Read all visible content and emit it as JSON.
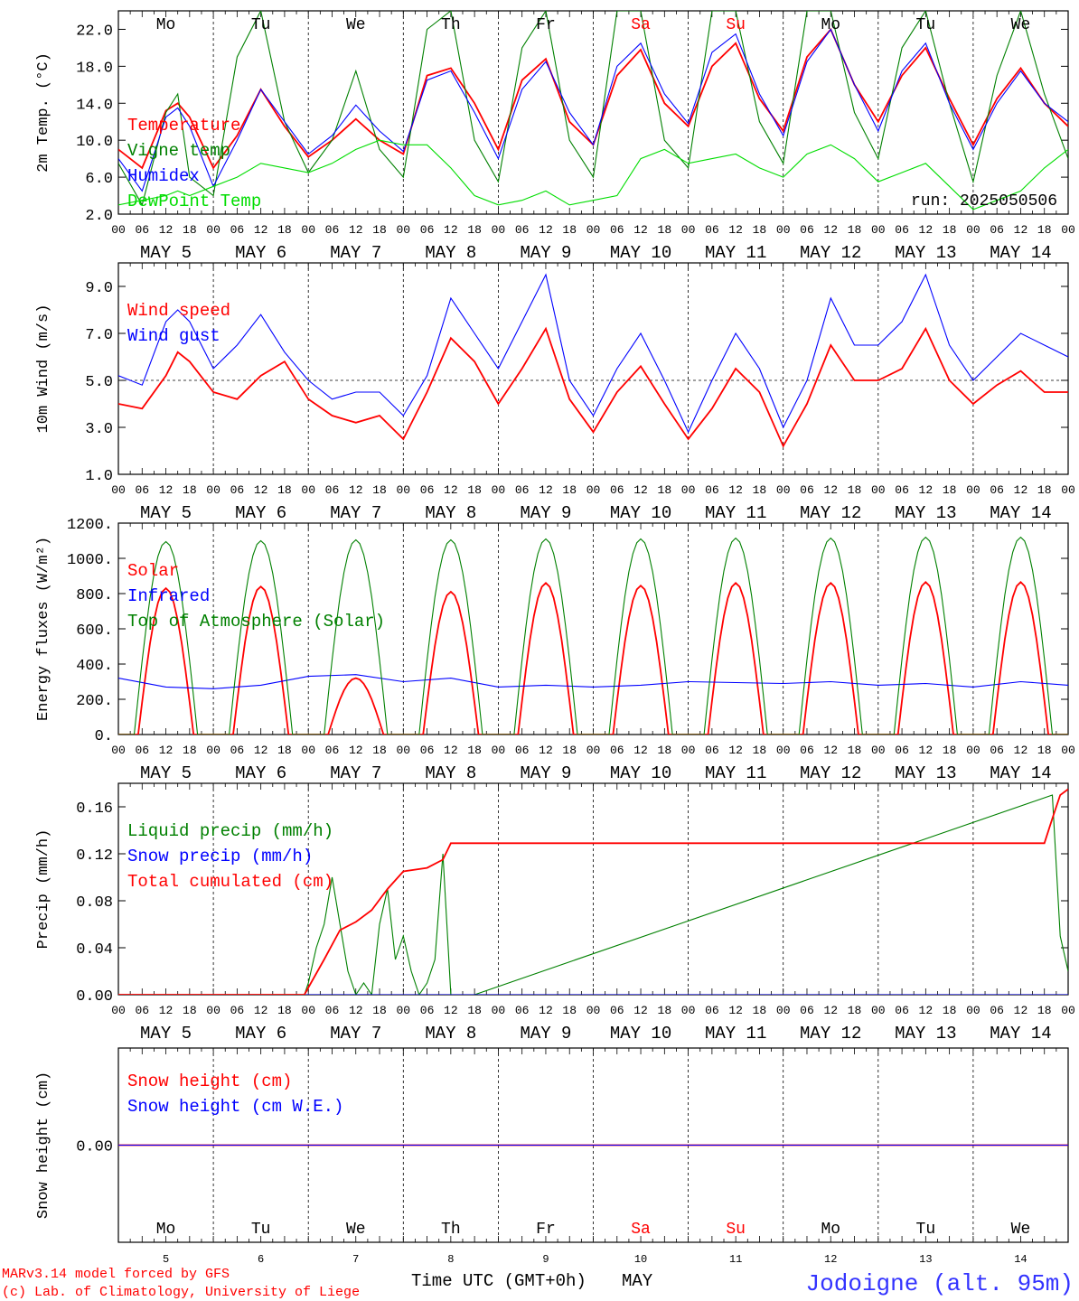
{
  "day_labels": [
    "Mo",
    "Tu",
    "We",
    "Th",
    "Fr",
    "Sa",
    "Su",
    "Mo",
    "Tu",
    "We"
  ],
  "weekend_days": [
    5,
    6
  ],
  "date_labels": [
    "MAY  5",
    "MAY  6",
    "MAY  7",
    "MAY  8",
    "MAY  9",
    "MAY 10",
    "MAY 11",
    "MAY 12",
    "MAY 13",
    "MAY 14"
  ],
  "hour_ticks": [
    "00",
    "06",
    "12",
    "18"
  ],
  "final_hour_tick": "00",
  "bottom_day_numbers": [
    "5",
    "6",
    "7",
    "8",
    "9",
    "10",
    "11",
    "12",
    "13",
    "14"
  ],
  "x_axis_title": "Time UTC (GMT+0h)",
  "x_axis_month": "MAY",
  "footer": {
    "model_line": "MARv3.14 model forced by GFS",
    "credit_line": "(c) Lab. of Climatology, University of Liege",
    "station": "Jodoigne (alt. 95m)"
  },
  "colors": {
    "red": "#ff0000",
    "green": "#008000",
    "blue": "#0000ff",
    "lightgreen": "#00dd00",
    "station": "#3333ff"
  },
  "chart_data": [
    {
      "id": "temp",
      "type": "line",
      "ylabel": "2m Temp. (°C)",
      "ylim": [
        2,
        24
      ],
      "yticks": [
        "2.0",
        "6.0",
        "10.0",
        "14.0",
        "18.0",
        "22.0"
      ],
      "yticks_values": [
        2,
        6,
        10,
        14,
        18,
        22
      ],
      "annotation": "run: 2025050506",
      "series": [
        {
          "name": "Temperature",
          "color": "red",
          "x": [
            0,
            6,
            12,
            15,
            18,
            24,
            30,
            36,
            42,
            48,
            54,
            60,
            66,
            72,
            78,
            84,
            90,
            96,
            102,
            108,
            114,
            120,
            126,
            132,
            138,
            144,
            150,
            156,
            162,
            168,
            174,
            180,
            186,
            192,
            198,
            204,
            210,
            216,
            222,
            228,
            234,
            240
          ],
          "y": [
            9,
            7,
            13.2,
            14,
            12.5,
            7,
            10.5,
            15.5,
            11.5,
            8.2,
            10,
            12.3,
            10,
            8.5,
            17,
            17.8,
            14,
            9,
            16.5,
            18.8,
            12,
            9.5,
            17,
            19.8,
            14,
            11.5,
            18,
            20.5,
            14.5,
            11,
            19,
            22,
            16,
            12,
            17,
            20,
            14.5,
            9.5,
            14.5,
            17.8,
            14,
            11.5
          ]
        },
        {
          "name": "Vigne temp",
          "color": "green",
          "x": [
            0,
            6,
            12,
            15,
            18,
            24,
            30,
            36,
            42,
            48,
            54,
            60,
            66,
            72,
            78,
            84,
            90,
            96,
            102,
            108,
            114,
            120,
            126,
            132,
            138,
            144,
            150,
            156,
            162,
            168,
            174,
            180,
            186,
            192,
            198,
            204,
            210,
            216,
            222,
            228,
            234,
            240
          ],
          "y": [
            7.5,
            3,
            13,
            15,
            6,
            4,
            19,
            24,
            12,
            6.5,
            10,
            17.5,
            9,
            6,
            22,
            24,
            10,
            5.5,
            20,
            24,
            10,
            6,
            24,
            24,
            10,
            7,
            24,
            24,
            12,
            7.5,
            24,
            24,
            13,
            8,
            20,
            24,
            14,
            5.5,
            17,
            24,
            15,
            8
          ]
        },
        {
          "name": "Humidex",
          "color": "blue",
          "x": [
            0,
            6,
            12,
            15,
            18,
            24,
            30,
            36,
            42,
            48,
            54,
            60,
            66,
            72,
            78,
            84,
            90,
            96,
            102,
            108,
            114,
            120,
            126,
            132,
            138,
            144,
            150,
            156,
            162,
            168,
            174,
            180,
            186,
            192,
            198,
            204,
            210,
            216,
            222,
            228,
            234,
            240
          ],
          "y": [
            8,
            4.5,
            12.5,
            13.5,
            11.5,
            5,
            10,
            15.5,
            12,
            8.5,
            10.5,
            13.8,
            11,
            8.8,
            16.5,
            17.5,
            13,
            8,
            15.5,
            18.5,
            13,
            9.5,
            18,
            20.5,
            15,
            11.8,
            19.5,
            21.5,
            15,
            10.5,
            18.5,
            22,
            16,
            11,
            17.5,
            20.5,
            14,
            9,
            14,
            17.5,
            14,
            12
          ]
        },
        {
          "name": "DewPoint Temp",
          "color": "lightgreen",
          "x": [
            0,
            6,
            12,
            15,
            18,
            24,
            30,
            36,
            42,
            48,
            54,
            60,
            66,
            72,
            78,
            84,
            90,
            96,
            102,
            108,
            114,
            120,
            126,
            132,
            138,
            144,
            150,
            156,
            162,
            168,
            174,
            180,
            186,
            192,
            198,
            204,
            210,
            216,
            222,
            228,
            234,
            240
          ],
          "y": [
            3,
            3.5,
            4,
            4.5,
            4,
            5,
            6,
            7.5,
            7,
            6.5,
            7.5,
            9,
            10,
            9.5,
            9.5,
            7,
            4,
            3,
            3.5,
            4.5,
            3,
            3.5,
            4,
            8,
            9,
            7.5,
            8,
            8.5,
            7,
            6,
            8.5,
            9.5,
            8,
            5.5,
            6.5,
            7.5,
            5,
            2.5,
            3.5,
            4.5,
            7,
            9
          ]
        }
      ]
    },
    {
      "id": "wind",
      "type": "line",
      "ylabel": "10m Wind (m/s)",
      "ylim": [
        1,
        10
      ],
      "yticks": [
        "1.0",
        "3.0",
        "5.0",
        "7.0",
        "9.0"
      ],
      "yticks_values": [
        1,
        3,
        5,
        7,
        9
      ],
      "reference_line": 5,
      "series": [
        {
          "name": "Wind speed",
          "color": "red",
          "x": [
            0,
            6,
            12,
            15,
            18,
            24,
            30,
            36,
            42,
            48,
            54,
            60,
            66,
            72,
            78,
            84,
            90,
            96,
            102,
            108,
            114,
            120,
            126,
            132,
            138,
            144,
            150,
            156,
            162,
            168,
            174,
            180,
            186,
            192,
            198,
            204,
            210,
            216,
            222,
            228,
            234,
            240
          ],
          "y": [
            4,
            3.8,
            5.2,
            6.2,
            5.8,
            4.5,
            4.2,
            5.2,
            5.8,
            4.2,
            3.5,
            3.2,
            3.5,
            2.5,
            4.5,
            6.8,
            5.8,
            4,
            5.5,
            7.2,
            4.2,
            2.8,
            4.5,
            5.6,
            4,
            2.5,
            3.8,
            5.5,
            4.5,
            2.2,
            4,
            6.5,
            5,
            5,
            5.5,
            7.2,
            5,
            4,
            4.8,
            5.4,
            4.5,
            4.5
          ]
        },
        {
          "name": "Wind gust",
          "color": "blue",
          "x": [
            0,
            6,
            12,
            15,
            18,
            24,
            30,
            36,
            42,
            48,
            54,
            60,
            66,
            72,
            78,
            84,
            90,
            96,
            102,
            108,
            114,
            120,
            126,
            132,
            138,
            144,
            150,
            156,
            162,
            168,
            174,
            180,
            186,
            192,
            198,
            204,
            210,
            216,
            222,
            228,
            234,
            240
          ],
          "y": [
            5.2,
            4.8,
            7.5,
            8,
            7.5,
            5.5,
            6.5,
            7.8,
            6.2,
            5,
            4.2,
            4.5,
            4.5,
            3.5,
            5.2,
            8.5,
            7,
            5.5,
            7.5,
            9.5,
            5,
            3.5,
            5.5,
            7,
            5,
            2.8,
            5,
            7,
            5.5,
            3,
            5,
            8.5,
            6.5,
            6.5,
            7.5,
            9.5,
            6.5,
            5,
            6,
            7,
            6.5,
            6
          ]
        }
      ]
    },
    {
      "id": "energy",
      "type": "line",
      "ylabel": "Energy fluxes (W/m²)",
      "ylim": [
        0,
        1200
      ],
      "yticks": [
        "0.",
        "200.",
        "400.",
        "600.",
        "800.",
        "1000.",
        "1200."
      ],
      "yticks_values": [
        0,
        200,
        400,
        600,
        800,
        1000,
        1200
      ],
      "series": [
        {
          "name": "Solar",
          "color": "red",
          "daily_peak": [
            830,
            840,
            320,
            810,
            860,
            845,
            860,
            860,
            865,
            865
          ],
          "profile": "diurnal"
        },
        {
          "name": "Infrared",
          "color": "blue",
          "x": [
            0,
            12,
            24,
            36,
            48,
            60,
            72,
            84,
            96,
            108,
            120,
            132,
            144,
            156,
            168,
            180,
            192,
            204,
            216,
            228,
            240
          ],
          "y": [
            320,
            270,
            260,
            280,
            330,
            340,
            300,
            320,
            270,
            280,
            270,
            280,
            300,
            295,
            290,
            300,
            280,
            290,
            270,
            300,
            280
          ]
        },
        {
          "name": "Top of Atmosphere (Solar)",
          "color": "green",
          "daily_peak": [
            1095,
            1100,
            1105,
            1105,
            1110,
            1110,
            1115,
            1115,
            1120,
            1120
          ],
          "profile": "diurnal"
        }
      ]
    },
    {
      "id": "precip",
      "type": "line",
      "ylabel": "Precip (mm/h)",
      "ylim": [
        0,
        0.18
      ],
      "yticks": [
        "0.00",
        "0.04",
        "0.08",
        "0.12",
        "0.16"
      ],
      "yticks_values": [
        0,
        0.04,
        0.08,
        0.12,
        0.16
      ],
      "series": [
        {
          "name": "Liquid precip (mm/h)",
          "color": "green",
          "x": [
            0,
            47,
            48,
            50,
            52,
            54,
            56,
            58,
            60,
            62,
            64,
            66,
            68,
            70,
            72,
            74,
            76,
            78,
            80,
            82,
            84,
            86,
            88,
            90,
            236,
            238,
            240
          ],
          "y": [
            0,
            0,
            0.01,
            0.04,
            0.06,
            0.1,
            0.06,
            0.02,
            0,
            0.01,
            0,
            0.06,
            0.09,
            0.03,
            0.05,
            0.02,
            0,
            0.01,
            0.03,
            0.12,
            0,
            0,
            0,
            0,
            0.17,
            0.05,
            0.02
          ]
        },
        {
          "name": "Snow precip (mm/h)",
          "color": "blue",
          "x": [
            0,
            240
          ],
          "y": [
            0,
            0
          ]
        },
        {
          "name": "Total cumulated (cm)",
          "color": "red",
          "x": [
            0,
            47,
            52,
            56,
            60,
            64,
            68,
            72,
            78,
            82,
            84,
            234,
            236,
            238,
            240
          ],
          "y": [
            0,
            0,
            0.03,
            0.055,
            0.062,
            0.072,
            0.09,
            0.105,
            0.108,
            0.115,
            0.129,
            0.129,
            0.15,
            0.17,
            0.175
          ]
        }
      ]
    },
    {
      "id": "snow",
      "type": "line",
      "ylabel": "Snow height (cm)",
      "ylim": [
        -1,
        1
      ],
      "yticks": [
        "0.00"
      ],
      "yticks_values": [
        0
      ],
      "series": [
        {
          "name": "Snow height (cm)",
          "color": "red",
          "x": [
            0,
            240
          ],
          "y": [
            0,
            0
          ]
        },
        {
          "name": "Snow height (cm W.E.)",
          "color": "blue",
          "x": [
            0,
            240
          ],
          "y": [
            0,
            0
          ]
        }
      ]
    }
  ]
}
